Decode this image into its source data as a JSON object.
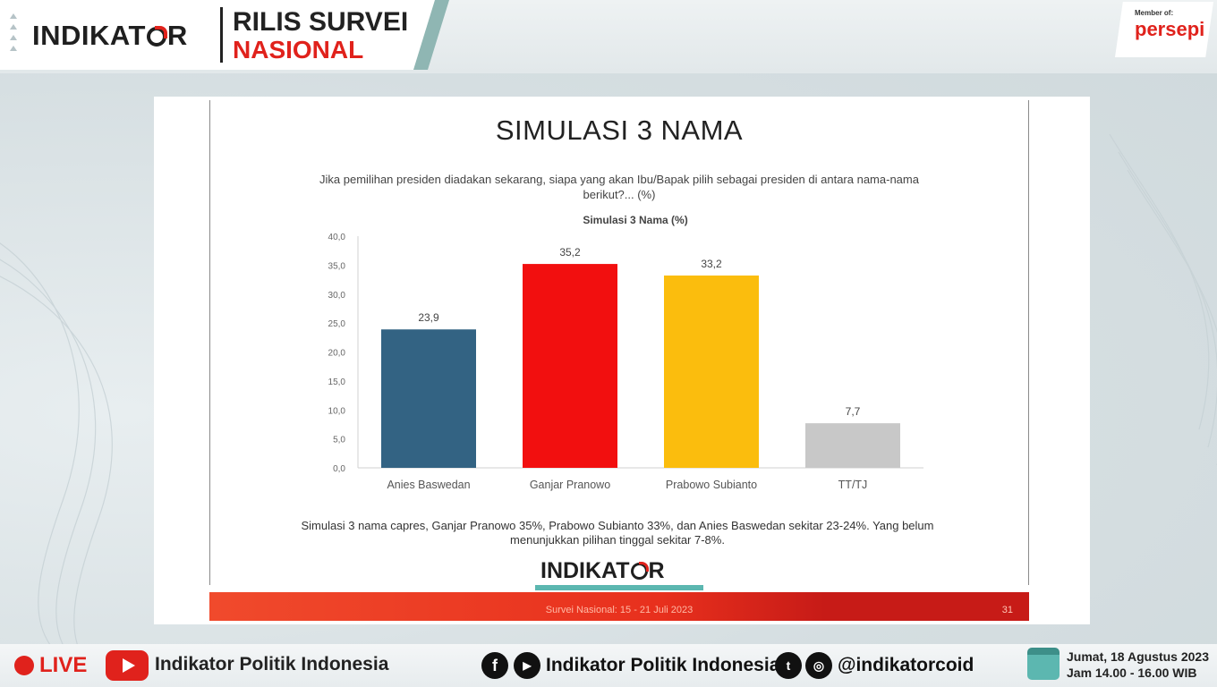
{
  "header": {
    "brand": "INDIKAT",
    "brand_tail": "R",
    "title_line1": "RILIS SURVEI",
    "title_line2": "NASIONAL",
    "member_label": "Member of:",
    "member_name": "persepi"
  },
  "slide": {
    "title": "SIMULASI 3 NAMA",
    "question": "Jika pemilihan presiden diadakan sekarang, siapa yang akan Ibu/Bapak pilih sebagai presiden di antara nama-nama berikut?... (%)",
    "caption": "Simulasi 3 nama capres, Ganjar Pranowo 35%, Prabowo Subianto 33%, dan Anies Baswedan sekitar 23-24%. Yang belum menunjukkan pilihan tinggal sekitar 7-8%.",
    "logo": "INDIKAT",
    "logo_tail": "R",
    "footer": "Survei Nasional: 15 - 21 Juli 2023",
    "page_number": "31"
  },
  "chart_data": {
    "type": "bar",
    "title": "Simulasi 3 Nama (%)",
    "categories": [
      "Anies Baswedan",
      "Ganjar Pranowo",
      "Prabowo Subianto",
      "TT/TJ"
    ],
    "values": [
      23.9,
      35.2,
      33.2,
      7.7
    ],
    "value_labels": [
      "23,9",
      "35,2",
      "33,2",
      "7,7"
    ],
    "colors": [
      "#336383",
      "#f20f0f",
      "#fbbd0d",
      "#c8c8c8"
    ],
    "ylim": [
      0,
      40
    ],
    "yticks": [
      "0,0",
      "5,0",
      "10,0",
      "15,0",
      "20,0",
      "25,0",
      "30,0",
      "35,0",
      "40,0"
    ],
    "ytick_values": [
      0,
      5,
      10,
      15,
      20,
      25,
      30,
      35,
      40
    ],
    "grid": false
  },
  "bottom": {
    "live": "LIVE",
    "channel": "Indikator Politik Indonesia",
    "social_name": "Indikator Politik Indonesia",
    "handle": "@indikatorcoid",
    "date": "Jumat, 18 Agustus 2023",
    "time": "Jam 14.00 - 16.00 WIB"
  }
}
